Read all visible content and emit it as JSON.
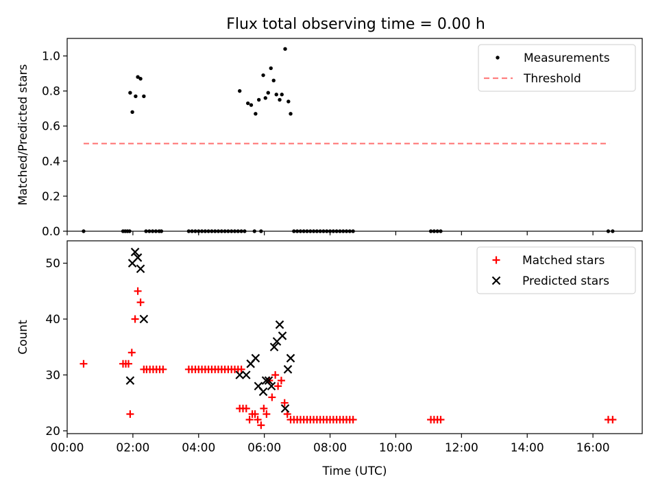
{
  "figure": {
    "title": "Flux total observing time = 0.00 h"
  },
  "chart_data": [
    {
      "type": "scatter",
      "title": "Flux total observing time = 0.00 h",
      "xlabel": "",
      "ylabel": "Matched/Predicted stars",
      "xlim": [
        "00:00",
        "17:30"
      ],
      "ylim": [
        0,
        1.1
      ],
      "xticks": [
        "00:00",
        "02:00",
        "04:00",
        "06:00",
        "08:00",
        "10:00",
        "12:00",
        "14:00",
        "16:00"
      ],
      "xtick_labels_visible": false,
      "yticks": [
        "0.0",
        "0.2",
        "0.4",
        "0.6",
        "0.8",
        "1.0"
      ],
      "legend": {
        "position": "top-right",
        "entries": [
          "Measurements",
          "Threshold"
        ]
      },
      "series": [
        {
          "name": "Measurements",
          "marker": "dot",
          "color": "#000000",
          "points": [
            [
              "00:30",
              0.0
            ],
            [
              "01:42",
              0.0
            ],
            [
              "01:46",
              0.0
            ],
            [
              "01:50",
              0.0
            ],
            [
              "01:54",
              0.0
            ],
            [
              "01:55",
              0.79
            ],
            [
              "01:59",
              0.68
            ],
            [
              "02:05",
              0.77
            ],
            [
              "02:09",
              0.88
            ],
            [
              "02:14",
              0.87
            ],
            [
              "02:20",
              0.77
            ],
            [
              "02:24",
              0.0
            ],
            [
              "02:30",
              0.0
            ],
            [
              "02:36",
              0.0
            ],
            [
              "02:42",
              0.0
            ],
            [
              "02:48",
              0.0
            ],
            [
              "02:52",
              0.0
            ],
            [
              "03:42",
              0.0
            ],
            [
              "03:48",
              0.0
            ],
            [
              "03:54",
              0.0
            ],
            [
              "04:00",
              0.0
            ],
            [
              "04:06",
              0.0
            ],
            [
              "04:12",
              0.0
            ],
            [
              "04:18",
              0.0
            ],
            [
              "04:24",
              0.0
            ],
            [
              "04:30",
              0.0
            ],
            [
              "04:36",
              0.0
            ],
            [
              "04:42",
              0.0
            ],
            [
              "04:48",
              0.0
            ],
            [
              "04:54",
              0.0
            ],
            [
              "05:00",
              0.0
            ],
            [
              "05:06",
              0.0
            ],
            [
              "05:12",
              0.0
            ],
            [
              "05:18",
              0.0
            ],
            [
              "05:24",
              0.0
            ],
            [
              "05:42",
              0.0
            ],
            [
              "05:54",
              0.0
            ],
            [
              "05:15",
              0.8
            ],
            [
              "05:30",
              0.73
            ],
            [
              "05:36",
              0.72
            ],
            [
              "05:44",
              0.67
            ],
            [
              "05:50",
              0.75
            ],
            [
              "05:58",
              0.89
            ],
            [
              "06:02",
              0.76
            ],
            [
              "06:07",
              0.79
            ],
            [
              "06:12",
              0.93
            ],
            [
              "06:17",
              0.86
            ],
            [
              "06:22",
              0.78
            ],
            [
              "06:28",
              0.75
            ],
            [
              "06:32",
              0.78
            ],
            [
              "06:38",
              1.04
            ],
            [
              "06:44",
              0.74
            ],
            [
              "06:48",
              0.67
            ],
            [
              "06:54",
              0.0
            ],
            [
              "07:00",
              0.0
            ],
            [
              "07:06",
              0.0
            ],
            [
              "07:12",
              0.0
            ],
            [
              "07:18",
              0.0
            ],
            [
              "07:24",
              0.0
            ],
            [
              "07:30",
              0.0
            ],
            [
              "07:36",
              0.0
            ],
            [
              "07:42",
              0.0
            ],
            [
              "07:48",
              0.0
            ],
            [
              "07:54",
              0.0
            ],
            [
              "08:00",
              0.0
            ],
            [
              "08:06",
              0.0
            ],
            [
              "08:12",
              0.0
            ],
            [
              "08:18",
              0.0
            ],
            [
              "08:24",
              0.0
            ],
            [
              "08:30",
              0.0
            ],
            [
              "08:36",
              0.0
            ],
            [
              "08:42",
              0.0
            ],
            [
              "11:04",
              0.0
            ],
            [
              "11:10",
              0.0
            ],
            [
              "11:16",
              0.0
            ],
            [
              "11:22",
              0.0
            ],
            [
              "16:28",
              0.0
            ],
            [
              "16:36",
              0.0
            ]
          ]
        },
        {
          "name": "Threshold",
          "style": "dashed",
          "color": "#ff7f7f",
          "points": [
            [
              "00:30",
              0.5
            ],
            [
              "16:30",
              0.5
            ]
          ]
        }
      ]
    },
    {
      "type": "scatter",
      "title": "",
      "xlabel": "Time (UTC)",
      "ylabel": "Count",
      "xlim": [
        "00:00",
        "17:30"
      ],
      "ylim": [
        19.5,
        54
      ],
      "xticks": [
        "00:00",
        "02:00",
        "04:00",
        "06:00",
        "08:00",
        "10:00",
        "12:00",
        "14:00",
        "16:00"
      ],
      "yticks": [
        "20",
        "30",
        "40",
        "50"
      ],
      "legend": {
        "position": "top-right",
        "entries": [
          "Matched stars",
          "Predicted stars"
        ]
      },
      "series": [
        {
          "name": "Matched stars",
          "marker": "plus",
          "color": "#ff0000",
          "points": [
            [
              "00:30",
              32
            ],
            [
              "01:42",
              32
            ],
            [
              "01:47",
              32
            ],
            [
              "01:52",
              32
            ],
            [
              "01:55",
              23
            ],
            [
              "01:58",
              34
            ],
            [
              "02:04",
              40
            ],
            [
              "02:09",
              45
            ],
            [
              "02:14",
              43
            ],
            [
              "02:20",
              31
            ],
            [
              "02:25",
              31
            ],
            [
              "02:31",
              31
            ],
            [
              "02:37",
              31
            ],
            [
              "02:43",
              31
            ],
            [
              "02:49",
              31
            ],
            [
              "02:55",
              31
            ],
            [
              "03:42",
              31
            ],
            [
              "03:48",
              31
            ],
            [
              "03:54",
              31
            ],
            [
              "04:00",
              31
            ],
            [
              "04:06",
              31
            ],
            [
              "04:12",
              31
            ],
            [
              "04:18",
              31
            ],
            [
              "04:24",
              31
            ],
            [
              "04:30",
              31
            ],
            [
              "04:36",
              31
            ],
            [
              "04:42",
              31
            ],
            [
              "04:48",
              31
            ],
            [
              "04:54",
              31
            ],
            [
              "05:00",
              31
            ],
            [
              "05:06",
              31
            ],
            [
              "05:12",
              31
            ],
            [
              "05:18",
              31
            ],
            [
              "05:15",
              24
            ],
            [
              "05:21",
              24
            ],
            [
              "05:27",
              24
            ],
            [
              "05:33",
              22
            ],
            [
              "05:38",
              23
            ],
            [
              "05:43",
              23
            ],
            [
              "05:48",
              22
            ],
            [
              "05:54",
              21
            ],
            [
              "05:59",
              24
            ],
            [
              "06:04",
              23
            ],
            [
              "06:09",
              29
            ],
            [
              "06:14",
              26
            ],
            [
              "06:20",
              30
            ],
            [
              "06:25",
              28
            ],
            [
              "06:31",
              29
            ],
            [
              "06:37",
              25
            ],
            [
              "06:42",
              23
            ],
            [
              "06:48",
              22
            ],
            [
              "06:54",
              22
            ],
            [
              "07:00",
              22
            ],
            [
              "07:06",
              22
            ],
            [
              "07:12",
              22
            ],
            [
              "07:18",
              22
            ],
            [
              "07:24",
              22
            ],
            [
              "07:30",
              22
            ],
            [
              "07:36",
              22
            ],
            [
              "07:42",
              22
            ],
            [
              "07:48",
              22
            ],
            [
              "07:54",
              22
            ],
            [
              "08:00",
              22
            ],
            [
              "08:06",
              22
            ],
            [
              "08:12",
              22
            ],
            [
              "08:18",
              22
            ],
            [
              "08:24",
              22
            ],
            [
              "08:30",
              22
            ],
            [
              "08:36",
              22
            ],
            [
              "08:42",
              22
            ],
            [
              "11:04",
              22
            ],
            [
              "11:10",
              22
            ],
            [
              "11:16",
              22
            ],
            [
              "11:22",
              22
            ],
            [
              "16:28",
              22
            ],
            [
              "16:36",
              22
            ]
          ]
        },
        {
          "name": "Predicted stars",
          "marker": "x",
          "color": "#000000",
          "points": [
            [
              "01:55",
              29
            ],
            [
              "01:59",
              50
            ],
            [
              "02:04",
              52
            ],
            [
              "02:09",
              51
            ],
            [
              "02:14",
              49
            ],
            [
              "02:20",
              40
            ],
            [
              "05:15",
              30
            ],
            [
              "05:27",
              30
            ],
            [
              "05:35",
              32
            ],
            [
              "05:44",
              33
            ],
            [
              "05:49",
              28
            ],
            [
              "05:58",
              27
            ],
            [
              "06:03",
              29
            ],
            [
              "06:08",
              29
            ],
            [
              "06:13",
              28
            ],
            [
              "06:18",
              35
            ],
            [
              "06:23",
              36
            ],
            [
              "06:28",
              39
            ],
            [
              "06:33",
              37
            ],
            [
              "06:38",
              24
            ],
            [
              "06:43",
              31
            ],
            [
              "06:48",
              33
            ]
          ]
        }
      ]
    }
  ]
}
